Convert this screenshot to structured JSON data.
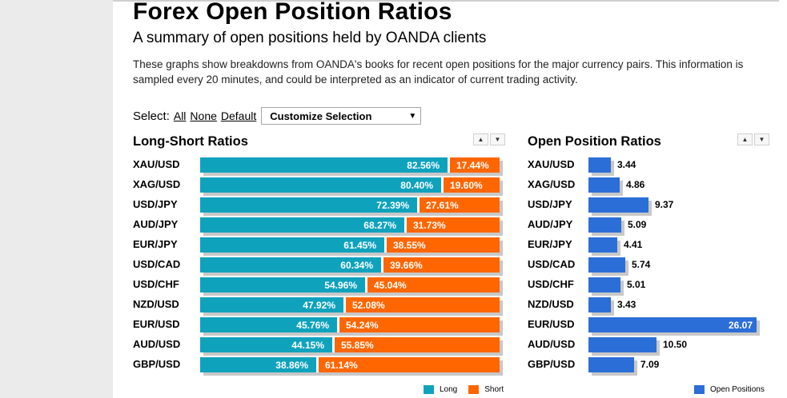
{
  "header": {
    "title": "Forex Open Position Ratios",
    "subtitle": "A summary of open positions held by OANDA clients",
    "intro": "These graphs show breakdowns from OANDA's books for recent open positions for the major currency pairs. This information is sampled every 20 minutes, and could be interpreted as an indicator of current trading activity."
  },
  "select": {
    "label": "Select:",
    "all": "All",
    "none": "None",
    "default": "Default",
    "customize": "Customize Selection"
  },
  "colors": {
    "long": "#0fa2bd",
    "short": "#ff6600",
    "open_positions": "#2c6ed7"
  },
  "chart_data": [
    {
      "type": "bar",
      "stacked": true,
      "orientation": "horizontal",
      "title": "Long-Short Ratios",
      "categories": [
        "XAU/USD",
        "XAG/USD",
        "USD/JPY",
        "AUD/JPY",
        "EUR/JPY",
        "USD/CAD",
        "USD/CHF",
        "NZD/USD",
        "EUR/USD",
        "AUD/USD",
        "GBP/USD"
      ],
      "series": [
        {
          "name": "Long",
          "color": "#0fa2bd",
          "values": [
            82.56,
            80.4,
            72.39,
            68.27,
            61.45,
            60.34,
            54.96,
            47.92,
            45.76,
            44.15,
            38.86
          ],
          "labels": [
            "82.56%",
            "80.40%",
            "72.39%",
            "68.27%",
            "61.45%",
            "60.34%",
            "54.96%",
            "47.92%",
            "45.76%",
            "44.15%",
            "38.86%"
          ]
        },
        {
          "name": "Short",
          "color": "#ff6600",
          "values": [
            17.44,
            19.6,
            27.61,
            31.73,
            38.55,
            39.66,
            45.04,
            52.08,
            54.24,
            55.85,
            61.14
          ],
          "labels": [
            "17.44%",
            "19.60%",
            "27.61%",
            "31.73%",
            "38.55%",
            "39.66%",
            "45.04%",
            "52.08%",
            "54.24%",
            "55.85%",
            "61.14%"
          ]
        }
      ],
      "legend_position": "bottom-right"
    },
    {
      "type": "bar",
      "orientation": "horizontal",
      "title": "Open Position Ratios",
      "categories": [
        "XAU/USD",
        "XAG/USD",
        "USD/JPY",
        "AUD/JPY",
        "EUR/JPY",
        "USD/CAD",
        "USD/CHF",
        "NZD/USD",
        "EUR/USD",
        "AUD/USD",
        "GBP/USD"
      ],
      "series": [
        {
          "name": "Open Positions",
          "color": "#2c6ed7",
          "values": [
            3.44,
            4.86,
            9.37,
            5.09,
            4.41,
            5.74,
            5.01,
            3.43,
            26.07,
            10.5,
            7.09
          ],
          "labels": [
            "3.44",
            "4.86",
            "9.37",
            "5.09",
            "4.41",
            "5.74",
            "5.01",
            "3.43",
            "26.07",
            "10.50",
            "7.09"
          ]
        }
      ],
      "legend_position": "bottom-right"
    }
  ]
}
